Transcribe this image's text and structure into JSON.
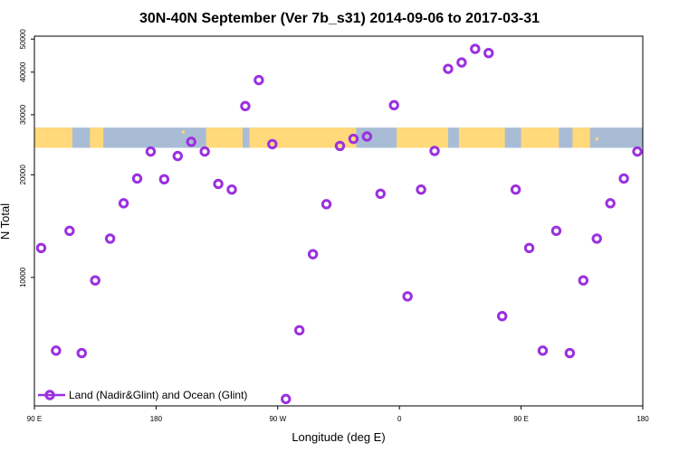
{
  "chart_data": {
    "type": "scatter",
    "title": "30N-40N September (Ver 7b_s31)   2014-09-06 to 2017-03-31",
    "xlabel": "Longitude (deg E)",
    "ylabel": "N Total",
    "x_ticks": [
      {
        "value": 90,
        "label": "90 E"
      },
      {
        "value": 180,
        "label": "180"
      },
      {
        "value": 270,
        "label": "90 W"
      },
      {
        "value": 360,
        "label": "0"
      },
      {
        "value": 450,
        "label": "90 E"
      },
      {
        "value": 540,
        "label": "180"
      }
    ],
    "y_ticks": [
      10000,
      20000,
      30000,
      40000,
      50000
    ],
    "xlim": [
      90,
      540
    ],
    "ylog": true,
    "ylim": [
      4200,
      51000
    ],
    "map_strip": {
      "y_range": [
        24000,
        27500
      ],
      "land_color": "#ffd97a",
      "ocean_color": "#a8bcd6"
    },
    "legend": {
      "label": "Land (Nadir&Glint) and Ocean (Glint)",
      "position": "bottom-left"
    },
    "marker_color": "#9b30e0",
    "series": [
      {
        "name": "Land (Nadir&Glint) and Ocean (Glint)",
        "x": [
          95,
          106,
          116,
          125,
          135,
          146,
          156,
          166,
          176,
          186,
          196,
          206,
          216,
          226,
          236,
          246,
          256,
          266,
          276,
          286,
          296,
          306,
          316,
          326,
          336,
          346,
          356,
          366,
          376,
          386,
          396,
          406,
          416,
          426,
          436,
          446,
          456,
          466,
          476,
          486,
          496,
          506,
          516,
          526,
          536
        ],
        "y": [
          12200,
          6100,
          13700,
          6000,
          9800,
          13000,
          16500,
          19500,
          23400,
          19400,
          22700,
          25000,
          23400,
          18800,
          18100,
          31800,
          37900,
          24600,
          4400,
          7000,
          11700,
          16400,
          24300,
          25500,
          25900,
          17600,
          32000,
          8800,
          18100,
          23500,
          40900,
          42700,
          46800,
          45500,
          7700,
          18100,
          12200,
          6100,
          13700,
          6000,
          9800,
          13000,
          16500,
          19500,
          23400
        ]
      }
    ]
  }
}
